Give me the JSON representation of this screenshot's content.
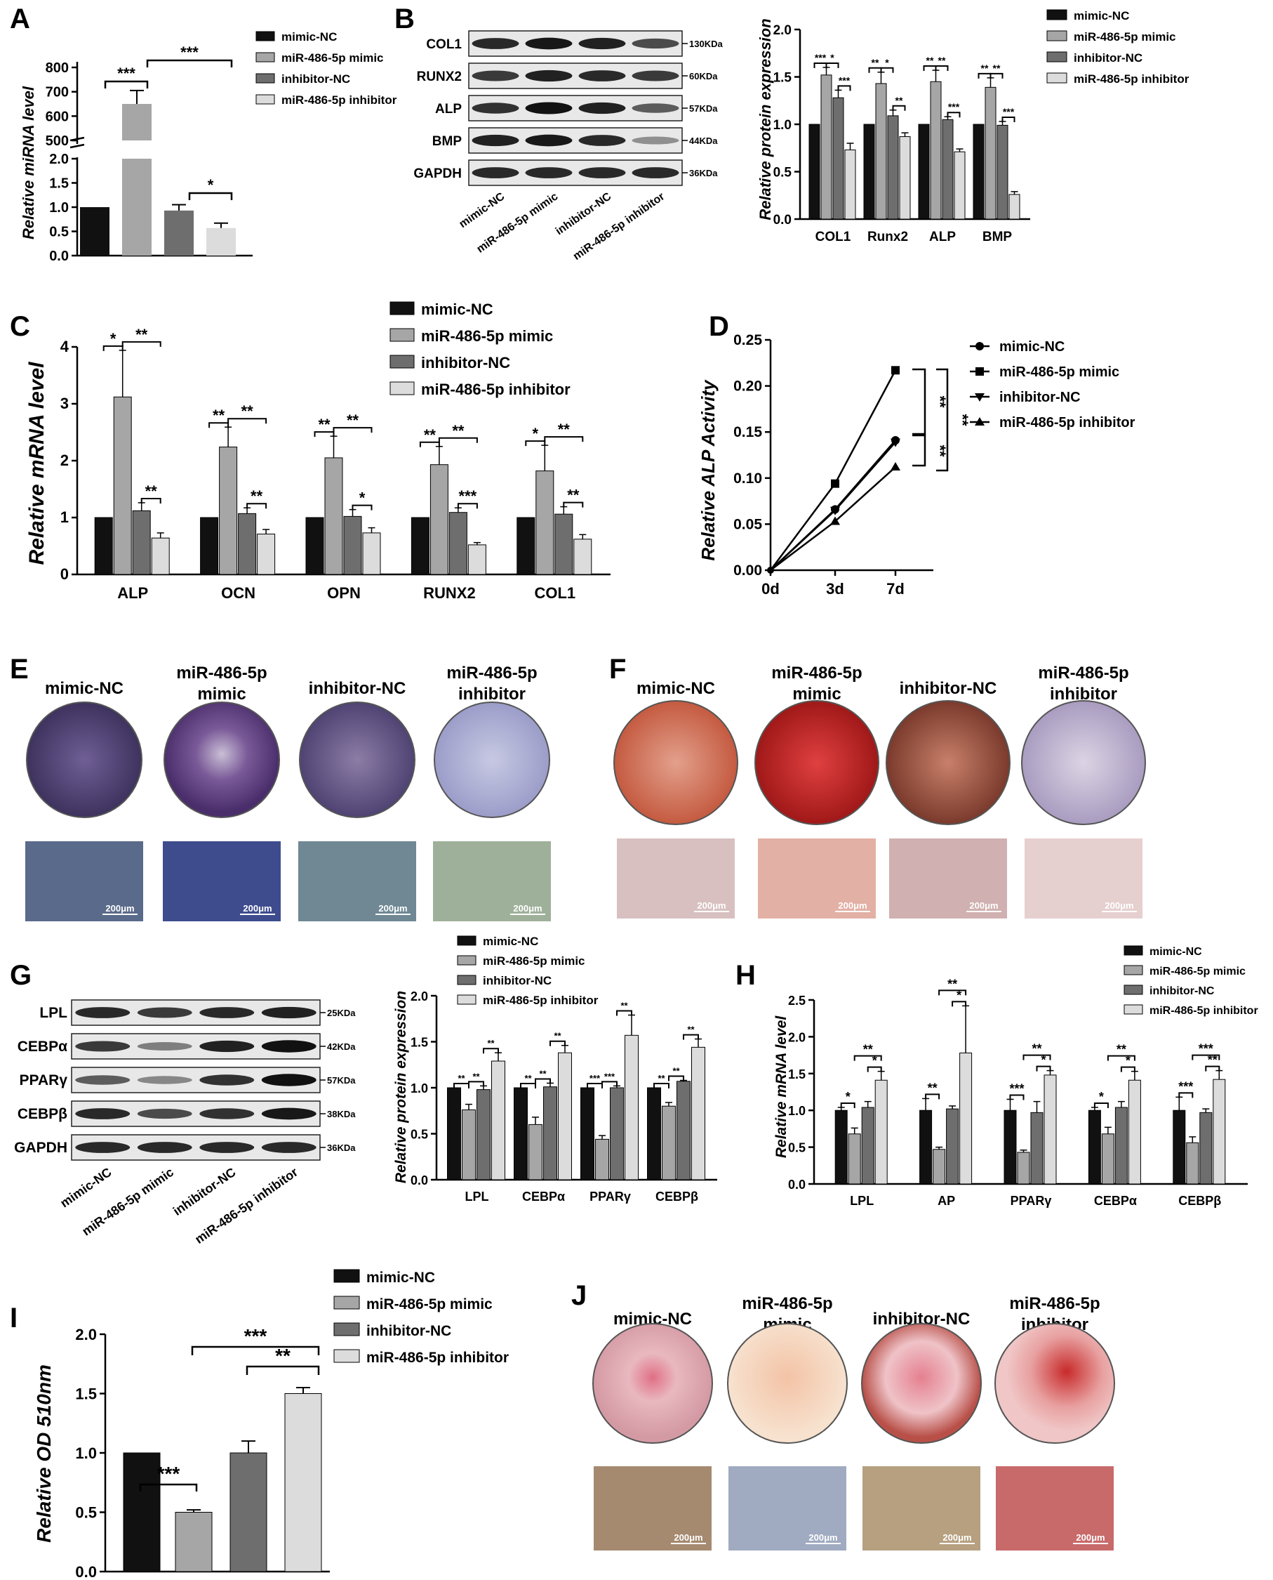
{
  "colors": {
    "c0": "#111111",
    "c1": "#a6a6a6",
    "c2": "#6e6e6e",
    "c3": "#dcdcdc"
  },
  "panels": {
    "A": {
      "label": "A",
      "ylabel": "Relative miRNA level",
      "legend": [
        "mimic-NC",
        "miR-486-5p mimic",
        "inhibitor-NC",
        "miR-486-5p inhibitor"
      ],
      "sig": [
        "***",
        "***",
        "*"
      ]
    },
    "B": {
      "label": "B",
      "ylabel": "Relative protein expression",
      "legend": [
        "mimic-NC",
        "miR-486-5p mimic",
        "inhibitor-NC",
        "miR-486-5p inhibitor"
      ],
      "blot": {
        "bands": [
          "COL1",
          "RUNX2",
          "ALP",
          "BMP",
          "GAPDH"
        ],
        "kda": [
          "130KDa",
          "60KDa",
          "57KDa",
          "44KDa",
          "36KDa"
        ],
        "lanes": [
          "mimic-NC",
          "miR-486-5p mimic",
          "inhibitor-NC",
          "miR-486-5p inhibitor"
        ]
      },
      "sig": [
        "***",
        "*",
        "***",
        "**",
        "*",
        "**",
        "**",
        "**",
        "***",
        "**",
        "**",
        "***"
      ]
    },
    "C": {
      "label": "C",
      "ylabel": "Relative mRNA level",
      "legend": [
        "mimic-NC",
        "miR-486-5p mimic",
        "inhibitor-NC",
        "miR-486-5p inhibitor"
      ],
      "sig": [
        "*",
        "**",
        "**",
        "**",
        "**",
        "**",
        "**",
        "**",
        "*",
        "**",
        "**",
        "***",
        "*",
        "**",
        "**"
      ]
    },
    "D": {
      "label": "D",
      "ylabel": "Relative ALP Activity",
      "legend": [
        "mimic-NC",
        "miR-486-5p mimic",
        "inhibitor-NC",
        "miR-486-5p inhibitor"
      ],
      "sig": [
        "**",
        "**",
        "**"
      ]
    },
    "E": {
      "label": "E",
      "conditions": [
        "mimic-NC",
        "miR-486-5p mimic",
        "inhibitor-NC",
        "miR-486-5p inhibitor"
      ],
      "scale": "200μm"
    },
    "F": {
      "label": "F",
      "conditions": [
        "mimic-NC",
        "miR-486-5p mimic",
        "inhibitor-NC",
        "miR-486-5p inhibitor"
      ],
      "scale": "200μm"
    },
    "G": {
      "label": "G",
      "ylabel": "Relative protein expression",
      "legend": [
        "mimic-NC",
        "miR-486-5p mimic",
        "inhibitor-NC",
        "miR-486-5p inhibitor"
      ],
      "blot": {
        "bands": [
          "LPL",
          "CEBPα",
          "PPARγ",
          "CEBPβ",
          "GAPDH"
        ],
        "kda": [
          "25KDa",
          "42KDa",
          "57KDa",
          "38KDa",
          "36KDa"
        ],
        "lanes": [
          "mimic-NC",
          "miR-486-5p mimic",
          "inhibitor-NC",
          "miR-486-5p inhibitor"
        ]
      },
      "sig": [
        "**",
        "**",
        "**",
        "**",
        "**",
        "**",
        "***",
        "***",
        "**",
        "**",
        "**",
        "**"
      ]
    },
    "H": {
      "label": "H",
      "ylabel": "Relative mRNA level",
      "legend": [
        "mimic-NC",
        "miR-486-5p mimic",
        "inhibitor-NC",
        "miR-486-5p inhibitor"
      ],
      "sig": [
        "*",
        "**",
        "*",
        "**",
        "**",
        "*",
        "***",
        "**",
        "*",
        "*",
        "**",
        "*",
        "***",
        "***",
        "**"
      ]
    },
    "I": {
      "label": "I",
      "ylabel": "Relative OD 510nm",
      "legend": [
        "mimic-NC",
        "miR-486-5p mimic",
        "inhibitor-NC",
        "miR-486-5p inhibitor"
      ],
      "sig": [
        "***",
        "***",
        "**"
      ]
    },
    "J": {
      "label": "J",
      "conditions": [
        "mimic-NC",
        "miR-486-5p mimic",
        "inhibitor-NC",
        "miR-486-5p inhibitor"
      ],
      "scale": "200μm"
    }
  },
  "chart_data": [
    {
      "panel": "A",
      "type": "bar",
      "categories": [
        "mimic-NC",
        "miR-486-5p mimic",
        "inhibitor-NC",
        "miR-486-5p inhibitor"
      ],
      "values": [
        1.0,
        650,
        0.93,
        0.57
      ],
      "errors": [
        0,
        55,
        0.12,
        0.1
      ],
      "ylabel": "Relative miRNA level",
      "axis_break": [
        2.0,
        500
      ],
      "ticks_low": [
        "0.0",
        "0.5",
        "1.0",
        "1.5",
        "2.0"
      ],
      "ticks_high": [
        "500",
        "600",
        "700",
        "800"
      ]
    },
    {
      "panel": "B",
      "type": "bar",
      "categories": [
        "COL1",
        "Runx2",
        "ALP",
        "BMP"
      ],
      "series": [
        {
          "name": "mimic-NC",
          "values": [
            1.0,
            1.0,
            1.0,
            1.0
          ],
          "errors": [
            0,
            0,
            0,
            0
          ]
        },
        {
          "name": "miR-486-5p mimic",
          "values": [
            1.52,
            1.43,
            1.45,
            1.39
          ],
          "errors": [
            0.08,
            0.12,
            0.12,
            0.1
          ]
        },
        {
          "name": "inhibitor-NC",
          "values": [
            1.28,
            1.09,
            1.05,
            0.99
          ],
          "errors": [
            0.08,
            0.06,
            0.03,
            0.04
          ]
        },
        {
          "name": "miR-486-5p inhibitor",
          "values": [
            0.73,
            0.87,
            0.71,
            0.26
          ],
          "errors": [
            0.07,
            0.04,
            0.03,
            0.03
          ]
        }
      ],
      "ylabel": "Relative protein expression",
      "ylim": [
        0,
        2.0
      ],
      "yticks": [
        "0.0",
        "0.5",
        "1.0",
        "1.5",
        "2.0"
      ]
    },
    {
      "panel": "C",
      "type": "bar",
      "categories": [
        "ALP",
        "OCN",
        "OPN",
        "RUNX2",
        "COL1"
      ],
      "series": [
        {
          "name": "mimic-NC",
          "values": [
            1.0,
            1.0,
            1.0,
            1.0,
            1.0
          ],
          "errors": [
            0,
            0,
            0,
            0,
            0
          ]
        },
        {
          "name": "miR-486-5p mimic",
          "values": [
            3.12,
            2.24,
            2.05,
            1.93,
            1.82
          ],
          "errors": [
            0.82,
            0.35,
            0.38,
            0.32,
            0.45
          ]
        },
        {
          "name": "inhibitor-NC",
          "values": [
            1.12,
            1.07,
            1.02,
            1.09,
            1.06
          ],
          "errors": [
            0.14,
            0.1,
            0.12,
            0.08,
            0.13
          ]
        },
        {
          "name": "miR-486-5p inhibitor",
          "values": [
            0.64,
            0.71,
            0.73,
            0.52,
            0.62
          ],
          "errors": [
            0.09,
            0.08,
            0.09,
            0.04,
            0.08
          ]
        }
      ],
      "ylabel": "Relative mRNA level",
      "ylim": [
        0,
        4
      ],
      "yticks": [
        "0",
        "1",
        "2",
        "3",
        "4"
      ]
    },
    {
      "panel": "D",
      "type": "line",
      "x": [
        "0d",
        "3d",
        "7d"
      ],
      "series": [
        {
          "name": "mimic-NC",
          "values": [
            0.0,
            0.066,
            0.141
          ]
        },
        {
          "name": "miR-486-5p mimic",
          "values": [
            0.0,
            0.094,
            0.217
          ]
        },
        {
          "name": "inhibitor-NC",
          "values": [
            0.0,
            0.065,
            0.139
          ]
        },
        {
          "name": "miR-486-5p inhibitor",
          "values": [
            0.0,
            0.053,
            0.112
          ]
        }
      ],
      "ylabel": "Relative ALP Activity",
      "ylim": [
        0,
        0.25
      ],
      "yticks": [
        "0.00",
        "0.05",
        "0.10",
        "0.15",
        "0.20",
        "0.25"
      ]
    },
    {
      "panel": "G",
      "type": "bar",
      "categories": [
        "LPL",
        "CEBPα",
        "PPARγ",
        "CEBPβ"
      ],
      "series": [
        {
          "name": "mimic-NC",
          "values": [
            1.0,
            1.0,
            1.0,
            1.0
          ],
          "errors": [
            0,
            0,
            0,
            0
          ]
        },
        {
          "name": "miR-486-5p mimic",
          "values": [
            0.76,
            0.6,
            0.44,
            0.8
          ],
          "errors": [
            0.06,
            0.08,
            0.04,
            0.04
          ]
        },
        {
          "name": "inhibitor-NC",
          "values": [
            0.98,
            1.01,
            1.0,
            1.07
          ],
          "errors": [
            0.04,
            0.04,
            0.02,
            0.01
          ]
        },
        {
          "name": "miR-486-5p inhibitor",
          "values": [
            1.29,
            1.38,
            1.57,
            1.44
          ],
          "errors": [
            0.09,
            0.08,
            0.22,
            0.09
          ]
        }
      ],
      "ylabel": "Relative protein expression",
      "ylim": [
        0,
        2.0
      ],
      "yticks": [
        "0.0",
        "0.5",
        "1.0",
        "1.5",
        "2.0"
      ]
    },
    {
      "panel": "H",
      "type": "bar",
      "categories": [
        "LPL",
        "AP",
        "PPARγ",
        "CEBPα",
        "CEBPβ"
      ],
      "series": [
        {
          "name": "mimic-NC",
          "values": [
            1.0,
            1.0,
            1.0,
            1.0,
            1.0
          ],
          "errors": [
            0.04,
            0.16,
            0.15,
            0.04,
            0.18
          ]
        },
        {
          "name": "miR-486-5p mimic",
          "values": [
            0.68,
            0.47,
            0.43,
            0.68,
            0.56
          ],
          "errors": [
            0.08,
            0.03,
            0.03,
            0.09,
            0.08
          ]
        },
        {
          "name": "inhibitor-NC",
          "values": [
            1.04,
            1.02,
            0.97,
            1.04,
            0.97
          ],
          "errors": [
            0.08,
            0.04,
            0.15,
            0.08,
            0.05
          ]
        },
        {
          "name": "miR-486-5p inhibitor",
          "values": [
            1.41,
            1.78,
            1.48,
            1.41,
            1.42
          ],
          "errors": [
            0.12,
            0.64,
            0.06,
            0.12,
            0.12
          ]
        }
      ],
      "ylabel": "Relative mRNA level",
      "ylim": [
        0,
        2.5
      ],
      "yticks": [
        "0.0",
        "0.5",
        "1.0",
        "1.5",
        "2.0",
        "2.5"
      ]
    },
    {
      "panel": "I",
      "type": "bar",
      "categories": [
        "mimic-NC",
        "miR-486-5p mimic",
        "inhibitor-NC",
        "miR-486-5p inhibitor"
      ],
      "values": [
        1.0,
        0.5,
        1.0,
        1.5
      ],
      "errors": [
        0,
        0.02,
        0.1,
        0.05
      ],
      "ylabel": "Relative OD 510nm",
      "ylim": [
        0,
        2.0
      ],
      "yticks": [
        "0.0",
        "0.5",
        "1.0",
        "1.5",
        "2.0"
      ]
    }
  ]
}
